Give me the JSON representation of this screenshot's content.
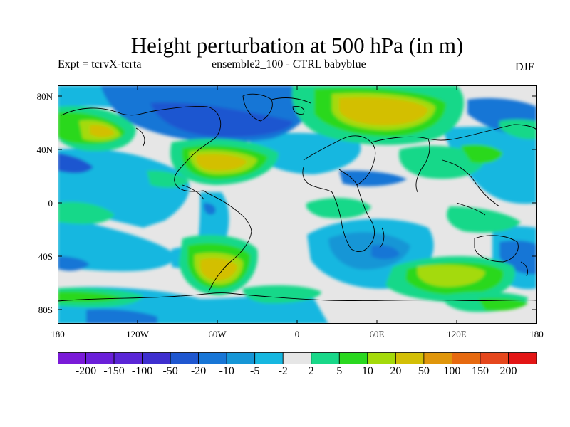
{
  "title": "Height perturbation at 500 hPa (in m)",
  "subtitle_left": "Expt = tcrvX-tcrta",
  "subtitle_center": "ensemble2_100 - CTRL babyblue",
  "season": "DJF",
  "lat_labels": [
    "80N",
    "40N",
    "0",
    "40S",
    "80S"
  ],
  "lon_labels": [
    "180",
    "120W",
    "60W",
    "0",
    "60E",
    "120E",
    "180"
  ],
  "colorbar": {
    "labels": [
      "-200",
      "-150",
      "-100",
      "-50",
      "-20",
      "-10",
      "-5",
      "-2",
      "2",
      "5",
      "10",
      "20",
      "50",
      "100",
      "150",
      "200"
    ],
    "colors": [
      "#7a1ad8",
      "#6a1fd9",
      "#5a26d6",
      "#3e2fcf",
      "#1f57d0",
      "#1876d6",
      "#1696d6",
      "#16b7e0",
      "#e6e6e6",
      "#19d889",
      "#2ad81f",
      "#a4da0a",
      "#d3bf06",
      "#e0960b",
      "#e6690f",
      "#e5471d",
      "#e31515"
    ]
  }
}
